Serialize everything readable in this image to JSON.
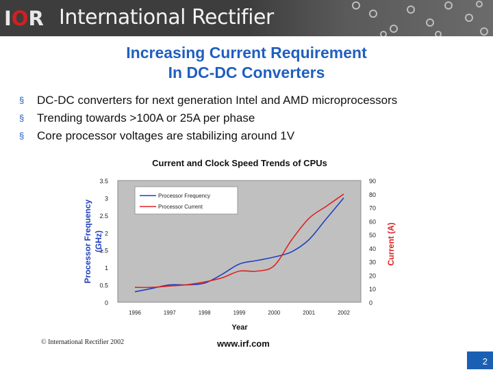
{
  "header": {
    "logo_prefix": "I",
    "logo_mid": "O",
    "logo_suffix": "R",
    "company": "International Rectifier",
    "colors": {
      "logo_red": "#d21f1f",
      "banner": "#3d3d3d"
    }
  },
  "slide": {
    "title_line1": "Increasing Current Requirement",
    "title_line2": "In DC-DC Converters",
    "bullets": [
      "DC-DC converters for next generation Intel and AMD microprocessors",
      "Trending towards >100A or 25A per phase",
      "Core processor voltages are stabilizing around 1V"
    ],
    "bullet_marker": "§",
    "copyright": "© International Rectifier 2002",
    "url": "www.irf.com",
    "page_number": "2",
    "accent_color": "#1f5fbf"
  },
  "chart_data": {
    "type": "line",
    "title": "Current and Clock Speed Trends of CPUs",
    "xlabel": "Year",
    "ylabel_left": "Processor Frequency (GHz)",
    "ylabel_right": "Current (A)",
    "categories": [
      "1996",
      "1997",
      "1998",
      "1999",
      "2000",
      "2001",
      "2002"
    ],
    "ylim_left": [
      0,
      3.5
    ],
    "ylim_right": [
      0,
      90
    ],
    "yticks_left": [
      "0",
      "0.5",
      "1",
      "1.5",
      "2",
      "2.5",
      "3",
      "3.5"
    ],
    "yticks_right": [
      "0",
      "10",
      "20",
      "30",
      "40",
      "50",
      "60",
      "70",
      "80",
      "90"
    ],
    "legend_position": "top-left",
    "plot_background": "#c0c0c0",
    "series": [
      {
        "name": "Processor Frequency",
        "axis": "left",
        "color": "#1f3fbf",
        "x": [
          1996,
          1996.5,
          1997,
          1997.5,
          1998,
          1998.5,
          1999,
          1999.5,
          2000,
          2000.5,
          2001,
          2001.5,
          2002
        ],
        "values": [
          0.3,
          0.4,
          0.5,
          0.5,
          0.55,
          0.8,
          1.1,
          1.2,
          1.3,
          1.45,
          1.8,
          2.4,
          3.0
        ]
      },
      {
        "name": "Processor Current",
        "axis": "right",
        "color": "#e02020",
        "x": [
          1996,
          1996.5,
          1997,
          1997.5,
          1998,
          1998.5,
          1999,
          1999.5,
          2000,
          2000.5,
          2001,
          2001.5,
          2002
        ],
        "values": [
          11,
          11,
          12,
          13,
          15,
          18,
          23,
          23,
          27,
          46,
          62,
          71,
          80
        ]
      }
    ]
  }
}
